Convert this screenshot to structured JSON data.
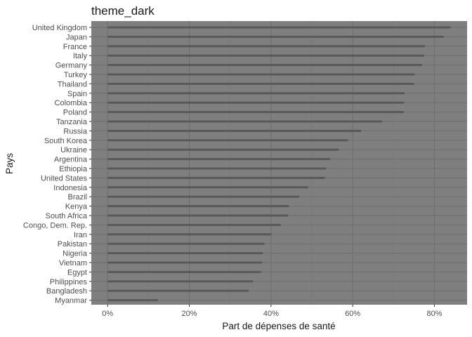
{
  "chart_data": {
    "type": "bar",
    "orientation": "horizontal",
    "title": "theme_dark",
    "xlabel": "Part de dépenses de santé",
    "ylabel": "Pays",
    "xlim": [
      -0.04,
      0.88
    ],
    "xticks": [
      0,
      0.2,
      0.4,
      0.6,
      0.8
    ],
    "xtick_labels": [
      "0%",
      "20%",
      "40%",
      "60%",
      "80%"
    ],
    "grid": true,
    "theme": "dark",
    "colors": {
      "panel_background": "#7f7f7f",
      "grid_major": "#6e6e6e",
      "grid_minor": "#777777",
      "bar": "#595959"
    },
    "categories": [
      "United Kingdom",
      "Japan",
      "France",
      "Italy",
      "Germany",
      "Turkey",
      "Thailand",
      "Spain",
      "Colombia",
      "Poland",
      "Tanzania",
      "Russia",
      "South Korea",
      "Ukraine",
      "Argentina",
      "Ethiopia",
      "United States",
      "Indonesia",
      "Brazil",
      "Kenya",
      "South Africa",
      "Congo, Dem. Rep.",
      "Iran",
      "Pakistan",
      "Nigeria",
      "Vietnam",
      "Egypt",
      "Philippines",
      "Bangladesh",
      "Myanmar"
    ],
    "values": [
      0.84,
      0.823,
      0.777,
      0.775,
      0.77,
      0.752,
      0.75,
      0.727,
      0.726,
      0.725,
      0.672,
      0.621,
      0.589,
      0.566,
      0.545,
      0.535,
      0.532,
      0.491,
      0.469,
      0.444,
      0.442,
      0.424,
      0.401,
      0.384,
      0.38,
      0.378,
      0.375,
      0.356,
      0.345,
      0.123
    ]
  }
}
